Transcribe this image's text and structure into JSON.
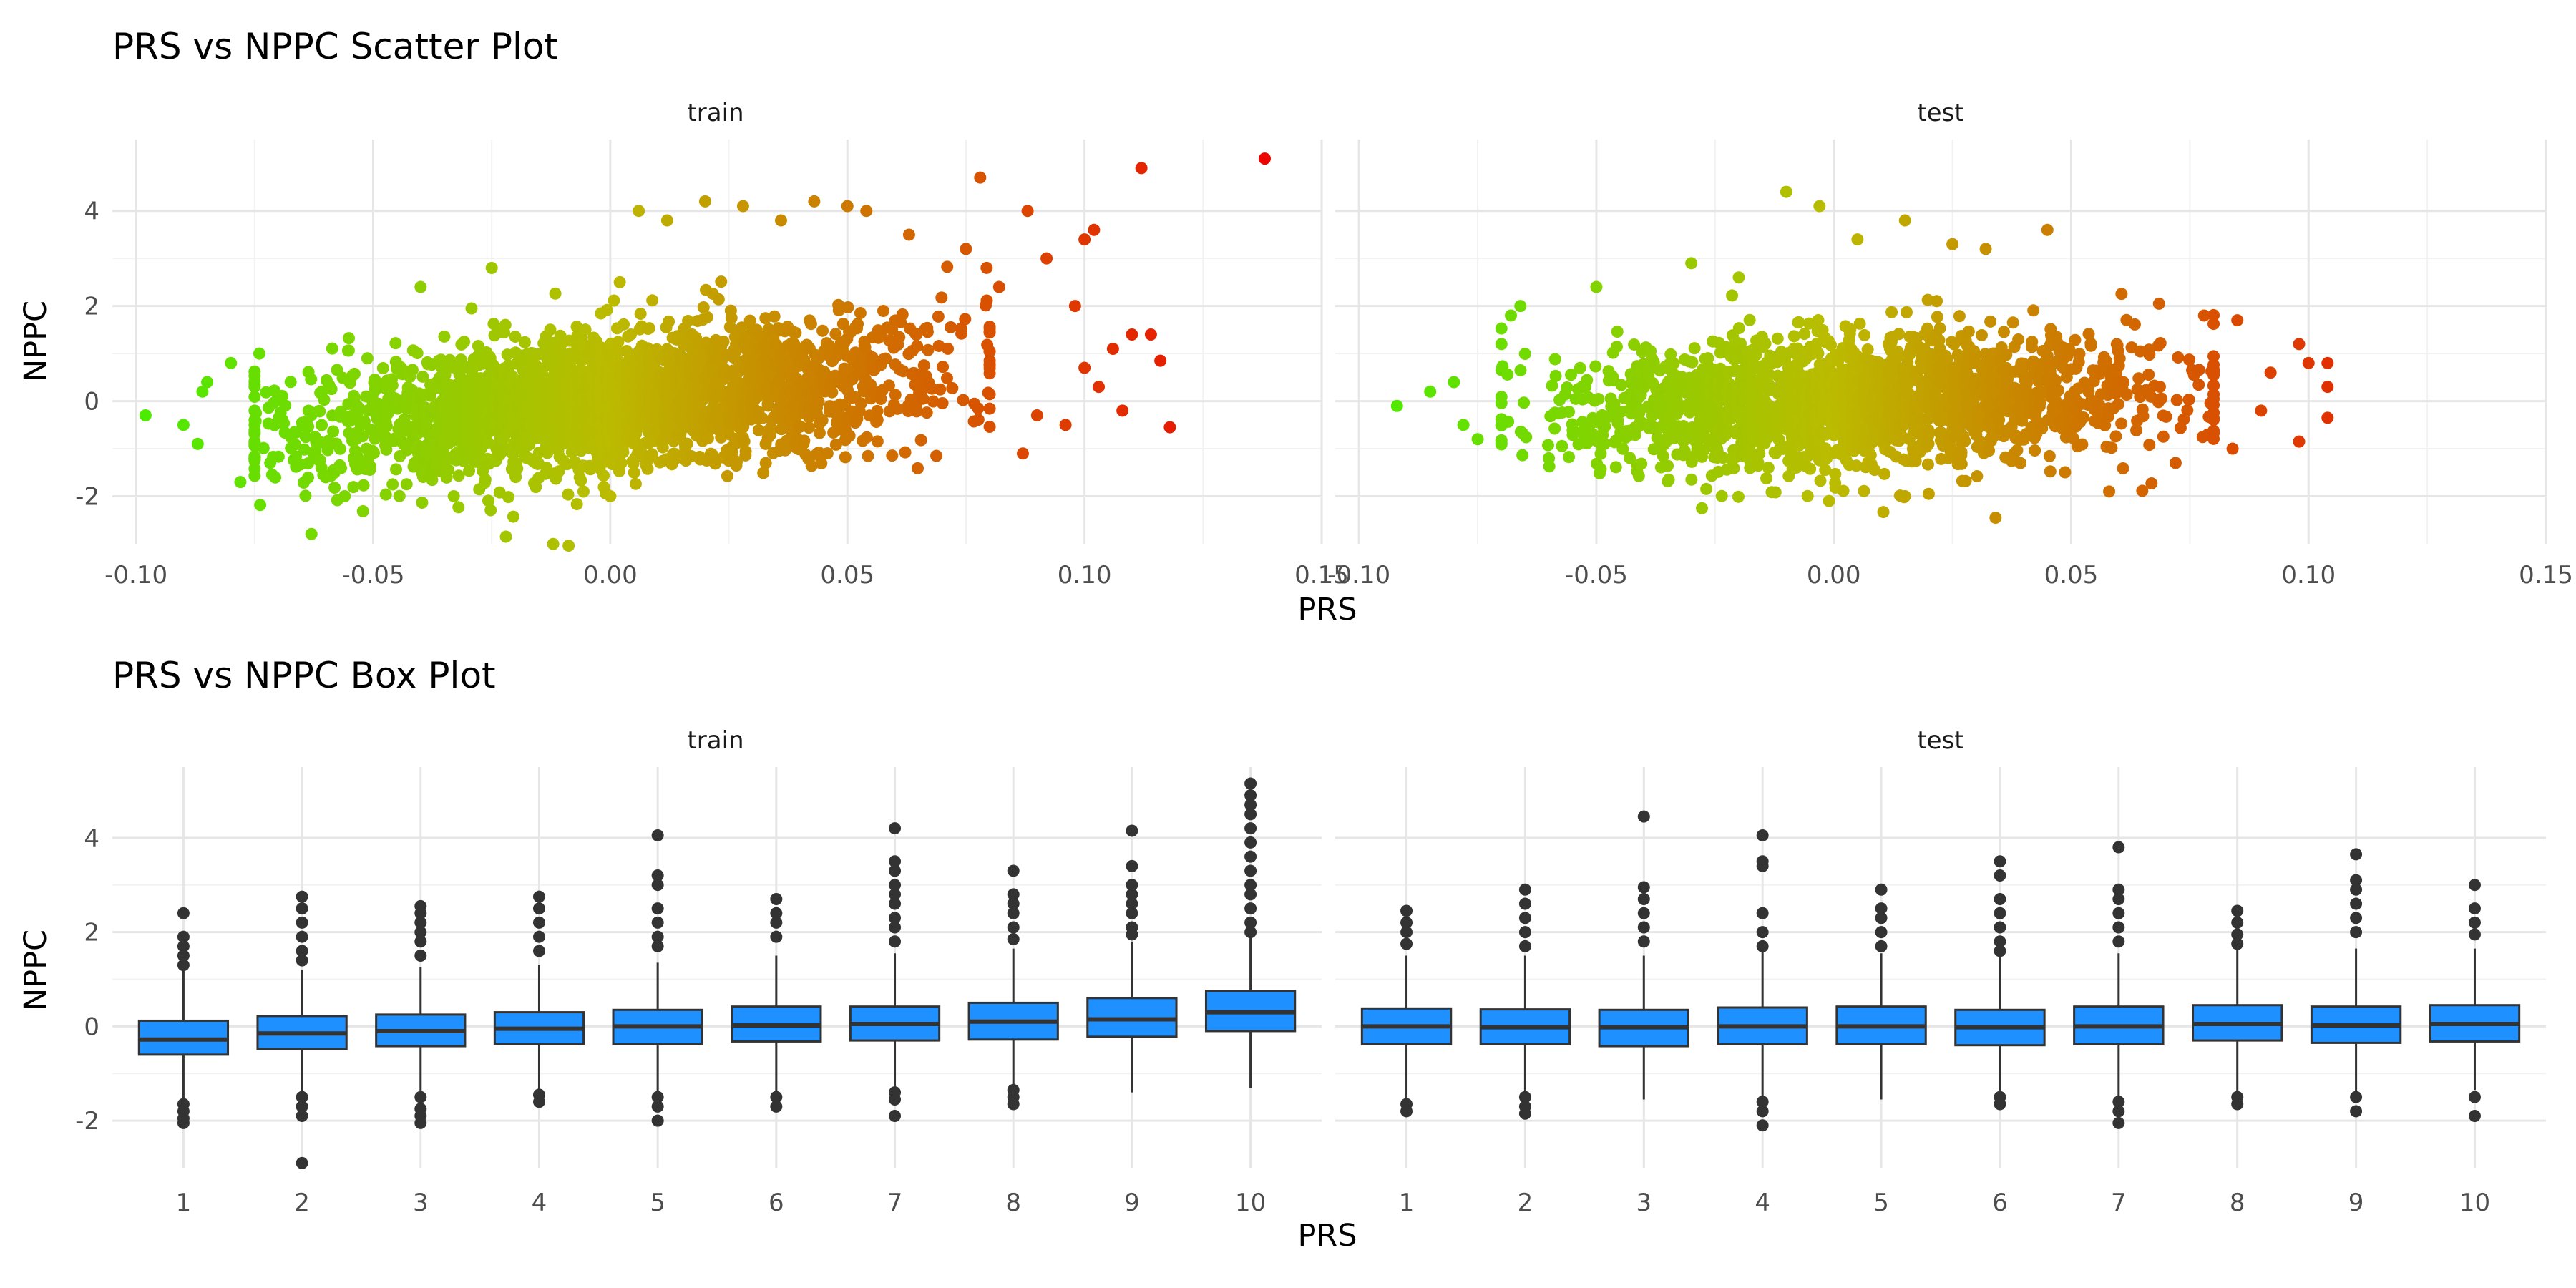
{
  "chart_data": [
    {
      "type": "scatter",
      "title": "PRS vs NPPC Scatter Plot",
      "xlabel": "PRS",
      "ylabel": "NPPC",
      "facets": [
        "train",
        "test"
      ],
      "xlim": [
        -0.105,
        0.15
      ],
      "ylim": [
        -3,
        5.5
      ],
      "x_ticks": [
        -0.1,
        -0.05,
        0.0,
        0.05,
        0.1,
        0.15
      ],
      "x_tick_labels": [
        "-0.10",
        "-0.05",
        "0.00",
        "0.05",
        "0.10",
        "0.15"
      ],
      "y_ticks": [
        -2,
        0,
        2,
        4
      ],
      "y_tick_labels": [
        "-2",
        "0",
        "2",
        "4"
      ],
      "grid": true,
      "color_scale": {
        "low": "#44ee00",
        "mid": "#bbbb00",
        "high": "#ee0000",
        "mid_value": 0.0,
        "high_value": 0.14
      },
      "series": [
        {
          "name": "train",
          "cloud": {
            "x_mean": 0.0,
            "x_sd": 0.032,
            "slope": 10,
            "y_sd": 0.72,
            "n": 2600,
            "x_range": [
              -0.075,
              0.08
            ]
          },
          "points": [
            {
              "x": -0.098,
              "y": -0.3
            },
            {
              "x": -0.09,
              "y": -0.5
            },
            {
              "x": -0.086,
              "y": 0.2
            },
            {
              "x": -0.085,
              "y": 0.4
            },
            {
              "x": -0.087,
              "y": -0.9
            },
            {
              "x": -0.08,
              "y": 0.8
            },
            {
              "x": -0.078,
              "y": -1.7
            },
            {
              "x": -0.074,
              "y": 1.0
            },
            {
              "x": -0.06,
              "y": -1.6
            },
            {
              "x": -0.056,
              "y": -2.0
            },
            {
              "x": -0.04,
              "y": 2.4
            },
            {
              "x": -0.033,
              "y": -2.0
            },
            {
              "x": -0.025,
              "y": 2.8
            },
            {
              "x": -0.022,
              "y": -2.85
            },
            {
              "x": 0.0,
              "y": -2.0
            },
            {
              "x": 0.002,
              "y": 2.5
            },
            {
              "x": 0.006,
              "y": 4.0
            },
            {
              "x": 0.012,
              "y": 3.8
            },
            {
              "x": 0.02,
              "y": 4.2
            },
            {
              "x": 0.028,
              "y": 4.1
            },
            {
              "x": 0.036,
              "y": 3.8
            },
            {
              "x": 0.043,
              "y": 4.2
            },
            {
              "x": 0.05,
              "y": 4.1
            },
            {
              "x": 0.054,
              "y": 4.0
            },
            {
              "x": 0.063,
              "y": 3.5
            },
            {
              "x": 0.078,
              "y": 4.7
            },
            {
              "x": 0.088,
              "y": 4.0
            },
            {
              "x": 0.075,
              "y": 3.2
            },
            {
              "x": 0.082,
              "y": 2.4
            },
            {
              "x": 0.092,
              "y": 3.0
            },
            {
              "x": 0.1,
              "y": 3.4
            },
            {
              "x": 0.102,
              "y": 3.6
            },
            {
              "x": 0.112,
              "y": 4.9
            },
            {
              "x": 0.138,
              "y": 5.1
            },
            {
              "x": 0.118,
              "y": -0.55
            },
            {
              "x": 0.116,
              "y": 0.85
            },
            {
              "x": 0.11,
              "y": 1.4
            },
            {
              "x": 0.114,
              "y": 1.4
            },
            {
              "x": 0.106,
              "y": 1.1
            },
            {
              "x": 0.098,
              "y": 2.0
            },
            {
              "x": 0.1,
              "y": 0.7
            },
            {
              "x": 0.096,
              "y": -0.5
            },
            {
              "x": 0.09,
              "y": -0.3
            },
            {
              "x": 0.087,
              "y": -1.1
            },
            {
              "x": 0.103,
              "y": 0.3
            },
            {
              "x": 0.108,
              "y": -0.2
            }
          ]
        },
        {
          "name": "test",
          "cloud": {
            "x_mean": 0.005,
            "x_sd": 0.03,
            "slope": 4,
            "y_sd": 0.68,
            "n": 2000,
            "x_range": [
              -0.07,
              0.08
            ]
          },
          "points": [
            {
              "x": -0.092,
              "y": -0.1
            },
            {
              "x": -0.085,
              "y": 0.2
            },
            {
              "x": -0.08,
              "y": 0.4
            },
            {
              "x": -0.078,
              "y": -0.5
            },
            {
              "x": -0.075,
              "y": -0.8
            },
            {
              "x": -0.07,
              "y": 1.2
            },
            {
              "x": -0.068,
              "y": 1.8
            },
            {
              "x": -0.066,
              "y": 2.0
            },
            {
              "x": -0.06,
              "y": -1.2
            },
            {
              "x": -0.05,
              "y": 2.4
            },
            {
              "x": -0.03,
              "y": 2.9
            },
            {
              "x": -0.02,
              "y": 2.6
            },
            {
              "x": -0.01,
              "y": 4.4
            },
            {
              "x": -0.003,
              "y": 4.1
            },
            {
              "x": 0.005,
              "y": 3.4
            },
            {
              "x": 0.015,
              "y": 3.8
            },
            {
              "x": 0.025,
              "y": 3.3
            },
            {
              "x": 0.032,
              "y": 3.2
            },
            {
              "x": 0.045,
              "y": 3.6
            },
            {
              "x": -0.001,
              "y": -2.1
            },
            {
              "x": 0.015,
              "y": -2.0
            },
            {
              "x": 0.02,
              "y": -1.95
            },
            {
              "x": 0.058,
              "y": -1.9
            },
            {
              "x": 0.078,
              "y": 1.8
            },
            {
              "x": 0.085,
              "y": 1.7
            },
            {
              "x": 0.092,
              "y": 0.6
            },
            {
              "x": 0.098,
              "y": 1.2
            },
            {
              "x": 0.1,
              "y": 0.8
            },
            {
              "x": 0.104,
              "y": 0.8
            },
            {
              "x": 0.104,
              "y": 0.3
            },
            {
              "x": 0.104,
              "y": -0.35
            },
            {
              "x": 0.098,
              "y": -0.85
            },
            {
              "x": 0.09,
              "y": -0.2
            },
            {
              "x": 0.084,
              "y": -1.0
            },
            {
              "x": 0.072,
              "y": -1.3
            }
          ]
        }
      ]
    },
    {
      "type": "box",
      "title": "PRS vs NPPC Box Plot",
      "xlabel": "PRS",
      "ylabel": "NPPC",
      "facets": [
        "train",
        "test"
      ],
      "categories": [
        "1",
        "2",
        "3",
        "4",
        "5",
        "6",
        "7",
        "8",
        "9",
        "10"
      ],
      "ylim": [
        -3,
        5.5
      ],
      "y_ticks": [
        -2,
        0,
        2,
        4
      ],
      "y_tick_labels": [
        "-2",
        "0",
        "2",
        "4"
      ],
      "fill": "#1e90ff",
      "grid": true,
      "series": [
        {
          "name": "train",
          "boxes": [
            {
              "q1": -0.6,
              "median": -0.28,
              "q3": 0.12,
              "whisker_low": -1.55,
              "whisker_high": 1.2,
              "outliers": [
                2.4,
                1.9,
                1.7,
                1.5,
                1.3,
                -1.65,
                -1.8,
                -1.95,
                -2.05
              ]
            },
            {
              "q1": -0.48,
              "median": -0.15,
              "q3": 0.22,
              "whisker_low": -1.4,
              "whisker_high": 1.2,
              "outliers": [
                2.75,
                2.5,
                2.2,
                1.9,
                1.6,
                1.4,
                -1.5,
                -1.7,
                -1.9,
                -2.9
              ]
            },
            {
              "q1": -0.42,
              "median": -0.1,
              "q3": 0.25,
              "whisker_low": -1.4,
              "whisker_high": 1.25,
              "outliers": [
                2.55,
                2.4,
                2.2,
                2.0,
                1.8,
                1.5,
                -1.5,
                -1.75,
                -1.9,
                -2.05
              ]
            },
            {
              "q1": -0.38,
              "median": -0.05,
              "q3": 0.3,
              "whisker_low": -1.4,
              "whisker_high": 1.3,
              "outliers": [
                2.75,
                2.5,
                2.2,
                1.9,
                1.6,
                -1.45,
                -1.6
              ]
            },
            {
              "q1": -0.38,
              "median": 0.0,
              "q3": 0.35,
              "whisker_low": -1.45,
              "whisker_high": 1.35,
              "outliers": [
                4.05,
                3.2,
                3.0,
                2.5,
                2.2,
                1.9,
                1.7,
                -1.5,
                -1.7,
                -2.0
              ]
            },
            {
              "q1": -0.32,
              "median": 0.02,
              "q3": 0.42,
              "whisker_low": -1.45,
              "whisker_high": 1.5,
              "outliers": [
                2.7,
                2.4,
                2.2,
                1.9,
                -1.5,
                -1.7
              ]
            },
            {
              "q1": -0.3,
              "median": 0.05,
              "q3": 0.42,
              "whisker_low": -1.4,
              "whisker_high": 1.55,
              "outliers": [
                4.2,
                3.5,
                3.3,
                3.0,
                2.8,
                2.6,
                2.3,
                2.1,
                1.8,
                -1.4,
                -1.55,
                -1.9
              ]
            },
            {
              "q1": -0.28,
              "median": 0.1,
              "q3": 0.5,
              "whisker_low": -1.35,
              "whisker_high": 1.65,
              "outliers": [
                3.3,
                2.8,
                2.6,
                2.4,
                2.1,
                1.85,
                -1.35,
                -1.5,
                -1.65
              ]
            },
            {
              "q1": -0.22,
              "median": 0.15,
              "q3": 0.6,
              "whisker_low": -1.4,
              "whisker_high": 1.8,
              "outliers": [
                4.15,
                3.4,
                3.0,
                2.8,
                2.6,
                2.4,
                2.1,
                1.95
              ]
            },
            {
              "q1": -0.1,
              "median": 0.3,
              "q3": 0.75,
              "whisker_low": -1.3,
              "whisker_high": 1.9,
              "outliers": [
                5.15,
                4.9,
                4.7,
                4.5,
                4.2,
                3.9,
                3.6,
                3.3,
                3.0,
                2.8,
                2.5,
                2.2,
                2.0
              ]
            }
          ]
        },
        {
          "name": "test",
          "boxes": [
            {
              "q1": -0.38,
              "median": 0.0,
              "q3": 0.38,
              "whisker_low": -1.55,
              "whisker_high": 1.5,
              "outliers": [
                2.45,
                2.2,
                2.0,
                1.75,
                -1.65,
                -1.8
              ]
            },
            {
              "q1": -0.38,
              "median": -0.02,
              "q3": 0.36,
              "whisker_low": -1.45,
              "whisker_high": 1.5,
              "outliers": [
                2.9,
                2.6,
                2.3,
                2.0,
                1.7,
                -1.5,
                -1.7,
                -1.85
              ]
            },
            {
              "q1": -0.42,
              "median": -0.02,
              "q3": 0.35,
              "whisker_low": -1.55,
              "whisker_high": 1.5,
              "outliers": [
                4.45,
                2.95,
                2.7,
                2.4,
                2.1,
                1.8
              ]
            },
            {
              "q1": -0.38,
              "median": 0.0,
              "q3": 0.4,
              "whisker_low": -1.5,
              "whisker_high": 1.6,
              "outliers": [
                4.05,
                3.5,
                3.4,
                2.4,
                2.0,
                1.7,
                -1.6,
                -1.8,
                -2.1
              ]
            },
            {
              "q1": -0.38,
              "median": 0.0,
              "q3": 0.42,
              "whisker_low": -1.55,
              "whisker_high": 1.55,
              "outliers": [
                2.9,
                2.5,
                2.3,
                2.0,
                1.7
              ]
            },
            {
              "q1": -0.4,
              "median": -0.02,
              "q3": 0.35,
              "whisker_low": -1.45,
              "whisker_high": 1.5,
              "outliers": [
                3.5,
                3.2,
                2.7,
                2.4,
                2.1,
                1.8,
                1.6,
                -1.5,
                -1.65
              ]
            },
            {
              "q1": -0.38,
              "median": 0.0,
              "q3": 0.42,
              "whisker_low": -1.5,
              "whisker_high": 1.55,
              "outliers": [
                3.8,
                2.9,
                2.7,
                2.4,
                2.1,
                1.8,
                -1.6,
                -1.8,
                -2.05
              ]
            },
            {
              "q1": -0.3,
              "median": 0.05,
              "q3": 0.45,
              "whisker_low": -1.45,
              "whisker_high": 1.65,
              "outliers": [
                2.45,
                2.2,
                1.95,
                1.75,
                -1.5,
                -1.65
              ]
            },
            {
              "q1": -0.35,
              "median": 0.02,
              "q3": 0.42,
              "whisker_low": -1.45,
              "whisker_high": 1.65,
              "outliers": [
                3.65,
                3.1,
                2.9,
                2.6,
                2.3,
                2.0,
                -1.5,
                -1.8
              ]
            },
            {
              "q1": -0.32,
              "median": 0.05,
              "q3": 0.45,
              "whisker_low": -1.35,
              "whisker_high": 1.65,
              "outliers": [
                3.0,
                2.5,
                2.2,
                1.95,
                -1.5,
                -1.9
              ]
            }
          ]
        }
      ]
    }
  ]
}
